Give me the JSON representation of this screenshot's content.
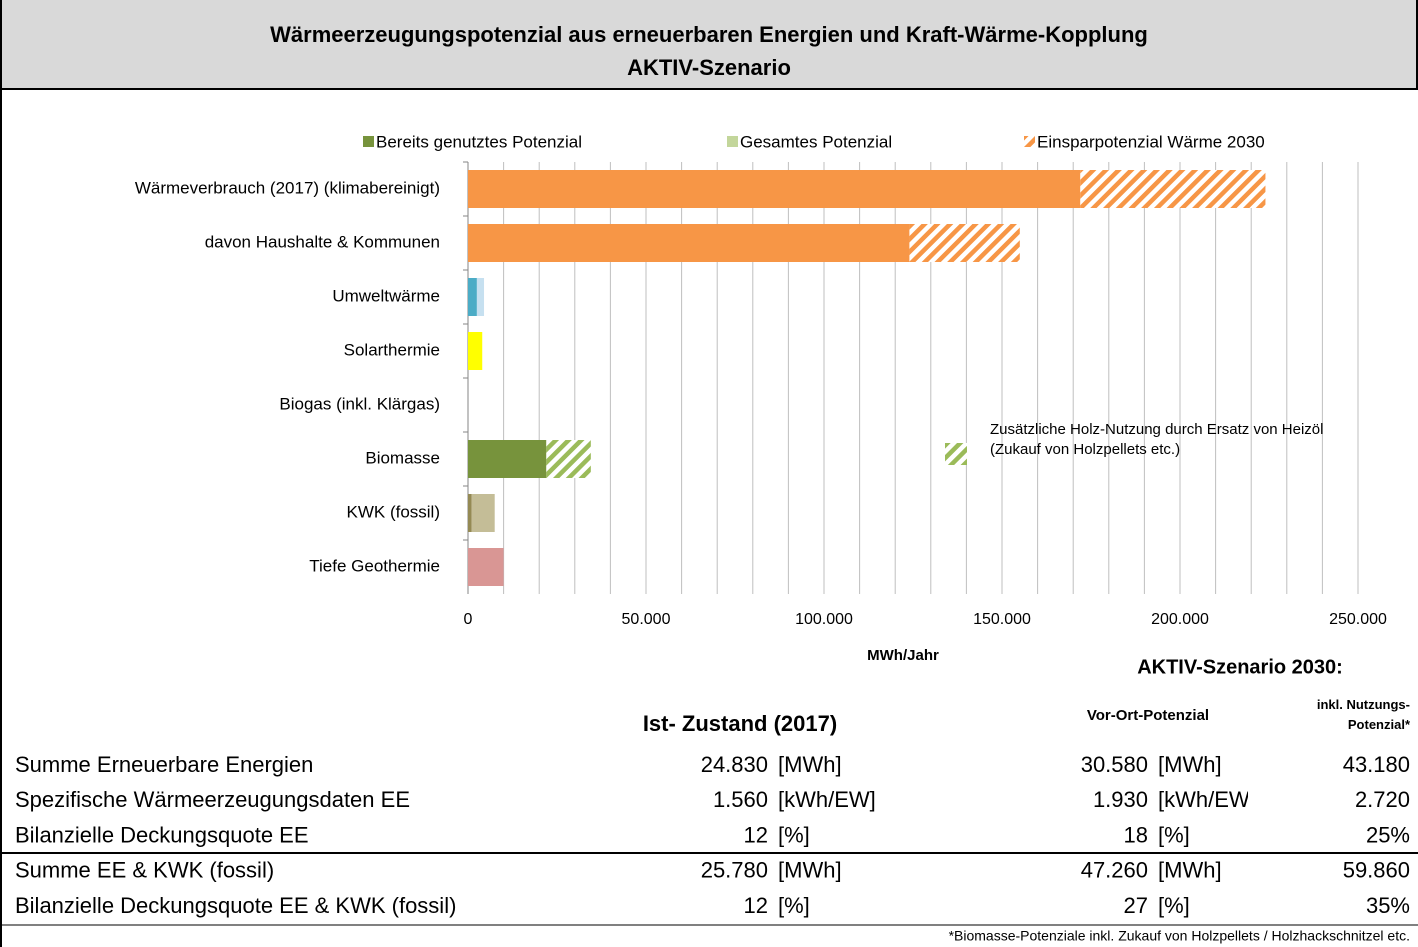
{
  "header": {
    "title": "Wärmeerzeugungspotenzial aus erneuerbaren Energien und Kraft-Wärme-Kopplung",
    "subtitle": "AKTIV-Szenario"
  },
  "chart_data": {
    "type": "bar",
    "orientation": "horizontal",
    "stacked": true,
    "categories": [
      "Wärmeverbrauch  (2017) (klimabereinigt)",
      "davon Haushalte & Kommunen",
      "Umweltwärme",
      "Solarthermie",
      "Biogas (inkl. Klärgas)",
      "Biomasse",
      "KWK (fossil)",
      "Tiefe Geothermie"
    ],
    "series": [
      {
        "name": "Bereits genutztes Potenzial",
        "color": "#77933c",
        "legend": "top",
        "hatch": false,
        "colors": [
          "#f79646",
          "#f79646",
          "#4bacc6",
          "#ffff00",
          "#77933c",
          "#77933c",
          "#948a54",
          "#d99694"
        ],
        "values": [
          172000,
          124000,
          2500,
          4000,
          0,
          22000,
          1000,
          0
        ]
      },
      {
        "name": "Gesamtes Potenzial",
        "color": "#c3d69b",
        "legend": "top",
        "hatch": false,
        "colors": [
          "#c3d69b",
          "#c3d69b",
          "#c6e0f0",
          "#ffff00",
          "#c3d69b",
          "#c3d69b",
          "#c4bd97",
          "#d99694"
        ],
        "values": [
          null,
          null,
          2000,
          null,
          0,
          null,
          6500,
          10000
        ]
      },
      {
        "name": "Einsparpotenzial Wärme 2030",
        "color": "#f79646",
        "legend": "top",
        "hatch": true,
        "values": [
          52000,
          31000,
          null,
          null,
          null,
          null,
          null,
          null
        ]
      },
      {
        "name": "Zusätzliche Holz-Nutzung durch Ersatz von Heizöl (Zukauf von Holzpellets etc.)",
        "color": "#9bbb59",
        "legend": "inside",
        "hatch": true,
        "values": [
          null,
          null,
          null,
          null,
          null,
          12500,
          null,
          null
        ]
      }
    ],
    "xlim": [
      0,
      250000
    ],
    "xticks": [
      0,
      {
        "value": 50000,
        "label": "50.000"
      },
      {
        "value": 100000,
        "label": "100.000"
      },
      {
        "value": 150000,
        "label": "150.000"
      },
      {
        "value": 200000,
        "label": "200.000"
      },
      {
        "value": 250000,
        "label": "250.000"
      }
    ],
    "xgrid": [
      0,
      10000,
      20000,
      30000,
      40000,
      50000,
      60000,
      70000,
      80000,
      90000,
      100000,
      110000,
      120000,
      130000,
      140000,
      150000,
      160000,
      170000,
      180000,
      190000,
      200000,
      210000,
      220000,
      230000,
      240000,
      250000
    ],
    "xlabel": "MWh/Jahr"
  },
  "table": {
    "scenario_title": "AKTIV-Szenario 2030:",
    "columns": [
      "Ist- Zustand (2017)",
      "Vor-Ort-Potenzial",
      "inkl. Nutzungs-Potenzial*"
    ],
    "rows": [
      [
        "Summe Erneuerbare Energien",
        "24.830",
        "[MWh]",
        "30.580",
        "[MWh]",
        "43.180"
      ],
      [
        "Spezifische Wärmeerzeugungsdaten EE",
        "1.560",
        "[kWh/EW]",
        "1.930",
        "[kWh/EW]",
        "2.720"
      ],
      [
        "Bilanzielle Deckungsquote EE",
        "12",
        "[%]",
        "18",
        "[%]",
        "25%"
      ],
      [
        "Summe EE & KWK (fossil)",
        "25.780",
        "[MWh]",
        "47.260",
        "[MWh]",
        "59.860"
      ],
      [
        "Bilanzielle Deckungsquote EE & KWK (fossil)",
        "12",
        "[%]",
        "27",
        "[%]",
        "35%"
      ]
    ],
    "footnote": "*Biomasse-Potenziale inkl. Zukauf von Holzpellets / Holzhackschnitzel etc."
  }
}
